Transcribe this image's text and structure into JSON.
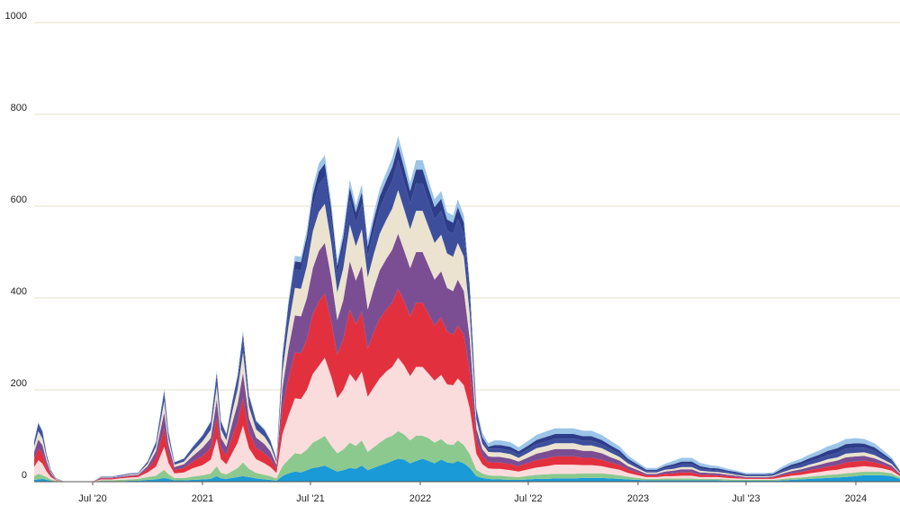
{
  "chart_data": {
    "type": "area",
    "stacked": true,
    "ylim": [
      0,
      1000
    ],
    "y_ticks": [
      0,
      200,
      400,
      600,
      800,
      1000
    ],
    "x_range": [
      "2020-03-25",
      "2024-03-15"
    ],
    "x_ticks": [
      {
        "date": "2020-07-01",
        "label": "Jul '20"
      },
      {
        "date": "2021-01-01",
        "label": "2021"
      },
      {
        "date": "2021-07-01",
        "label": "Jul '21"
      },
      {
        "date": "2022-01-01",
        "label": "2022"
      },
      {
        "date": "2022-07-01",
        "label": "Jul '22"
      },
      {
        "date": "2023-01-01",
        "label": "2023"
      },
      {
        "date": "2023-07-01",
        "label": "Jul '23"
      },
      {
        "date": "2024-01-01",
        "label": "2024"
      }
    ],
    "grid": true,
    "legend": "none",
    "series_colors": [
      "#1a9ad6",
      "#8cc98f",
      "#fbdcdc",
      "#e3303f",
      "#7b4e93",
      "#ebe3cf",
      "#3d4f9c",
      "#2e3d8a",
      "#9cc5e8"
    ],
    "x": [
      "2020-03-25",
      "2020-04-01",
      "2020-04-08",
      "2020-04-15",
      "2020-04-22",
      "2020-05-01",
      "2020-05-15",
      "2020-06-01",
      "2020-06-15",
      "2020-07-01",
      "2020-07-15",
      "2020-08-01",
      "2020-08-15",
      "2020-09-01",
      "2020-09-15",
      "2020-10-01",
      "2020-10-15",
      "2020-10-29",
      "2020-11-05",
      "2020-11-15",
      "2020-12-01",
      "2020-12-15",
      "2021-01-01",
      "2021-01-15",
      "2021-01-25",
      "2021-02-01",
      "2021-02-10",
      "2021-02-20",
      "2021-03-01",
      "2021-03-10",
      "2021-03-20",
      "2021-04-01",
      "2021-04-15",
      "2021-04-25",
      "2021-05-05",
      "2021-05-15",
      "2021-05-25",
      "2021-06-05",
      "2021-06-15",
      "2021-06-25",
      "2021-07-05",
      "2021-07-15",
      "2021-07-25",
      "2021-08-05",
      "2021-08-15",
      "2021-08-25",
      "2021-09-05",
      "2021-09-15",
      "2021-09-25",
      "2021-10-05",
      "2021-10-15",
      "2021-10-25",
      "2021-11-05",
      "2021-11-15",
      "2021-11-25",
      "2021-12-05",
      "2021-12-15",
      "2021-12-25",
      "2022-01-05",
      "2022-01-15",
      "2022-01-25",
      "2022-02-05",
      "2022-02-15",
      "2022-02-25",
      "2022-03-05",
      "2022-03-15",
      "2022-03-25",
      "2022-04-05",
      "2022-04-15",
      "2022-04-25",
      "2022-05-05",
      "2022-05-15",
      "2022-06-01",
      "2022-06-15",
      "2022-07-01",
      "2022-07-15",
      "2022-08-01",
      "2022-08-15",
      "2022-09-01",
      "2022-09-15",
      "2022-10-01",
      "2022-10-15",
      "2022-11-01",
      "2022-11-15",
      "2022-12-01",
      "2022-12-15",
      "2023-01-01",
      "2023-01-15",
      "2023-02-01",
      "2023-02-15",
      "2023-03-01",
      "2023-03-15",
      "2023-04-01",
      "2023-04-15",
      "2023-05-01",
      "2023-05-15",
      "2023-06-01",
      "2023-06-15",
      "2023-07-01",
      "2023-07-15",
      "2023-08-01",
      "2023-08-15",
      "2023-09-01",
      "2023-09-15",
      "2023-10-01",
      "2023-10-15",
      "2023-11-01",
      "2023-11-15",
      "2023-12-01",
      "2023-12-15",
      "2024-01-01",
      "2024-01-15",
      "2024-02-01",
      "2024-02-15",
      "2024-03-01",
      "2024-03-15"
    ],
    "series": [
      {
        "values": [
          4,
          5,
          6,
          4,
          2,
          1,
          0,
          0,
          0,
          0,
          1,
          1,
          1,
          2,
          2,
          4,
          5,
          8,
          6,
          3,
          3,
          4,
          5,
          6,
          12,
          7,
          6,
          8,
          10,
          12,
          10,
          7,
          5,
          4,
          2,
          12,
          18,
          22,
          20,
          25,
          30,
          32,
          35,
          28,
          22,
          25,
          30,
          28,
          35,
          25,
          30,
          35,
          40,
          45,
          50,
          48,
          40,
          45,
          50,
          45,
          40,
          48,
          42,
          40,
          45,
          40,
          30,
          12,
          8,
          6,
          5,
          5,
          4,
          4,
          5,
          6,
          6,
          7,
          7,
          7,
          8,
          8,
          8,
          7,
          6,
          5,
          4,
          3,
          3,
          3,
          3,
          3,
          3,
          3,
          3,
          3,
          2,
          2,
          2,
          2,
          2,
          2,
          3,
          4,
          5,
          6,
          7,
          8,
          9,
          10,
          12,
          14,
          14,
          14,
          12,
          6
        ]
      },
      {
        "values": [
          8,
          12,
          8,
          6,
          3,
          1,
          0,
          0,
          0,
          0,
          2,
          2,
          3,
          3,
          4,
          6,
          8,
          18,
          10,
          5,
          5,
          7,
          9,
          12,
          22,
          12,
          10,
          15,
          20,
          30,
          18,
          12,
          10,
          8,
          5,
          22,
          30,
          40,
          40,
          45,
          55,
          60,
          65,
          50,
          40,
          45,
          55,
          50,
          55,
          40,
          45,
          50,
          55,
          55,
          60,
          55,
          50,
          55,
          50,
          50,
          45,
          45,
          40,
          40,
          45,
          40,
          30,
          14,
          10,
          8,
          8,
          8,
          7,
          6,
          8,
          9,
          10,
          10,
          10,
          10,
          10,
          10,
          10,
          9,
          8,
          6,
          4,
          3,
          3,
          4,
          4,
          4,
          4,
          3,
          3,
          3,
          3,
          2,
          2,
          2,
          2,
          2,
          3,
          4,
          4,
          5,
          6,
          7,
          7,
          8,
          8,
          8,
          8,
          7,
          6,
          3
        ]
      },
      {
        "values": [
          20,
          30,
          25,
          12,
          5,
          1,
          0,
          0,
          0,
          0,
          2,
          2,
          3,
          4,
          4,
          10,
          20,
          50,
          25,
          10,
          12,
          18,
          22,
          30,
          60,
          30,
          22,
          40,
          55,
          80,
          45,
          30,
          25,
          20,
          12,
          70,
          95,
          120,
          120,
          130,
          150,
          160,
          170,
          150,
          120,
          130,
          150,
          140,
          150,
          120,
          130,
          140,
          145,
          150,
          160,
          150,
          140,
          150,
          150,
          140,
          135,
          140,
          130,
          130,
          135,
          130,
          100,
          35,
          20,
          15,
          15,
          15,
          14,
          12,
          14,
          16,
          18,
          20,
          20,
          20,
          18,
          18,
          16,
          14,
          12,
          8,
          6,
          4,
          4,
          5,
          5,
          6,
          6,
          4,
          4,
          4,
          3,
          3,
          2,
          2,
          2,
          2,
          4,
          5,
          6,
          7,
          8,
          9,
          10,
          12,
          12,
          12,
          10,
          8,
          6,
          3
        ]
      },
      {
        "values": [
          18,
          25,
          22,
          12,
          5,
          1,
          0,
          0,
          0,
          0,
          2,
          2,
          2,
          3,
          3,
          8,
          18,
          40,
          22,
          8,
          10,
          14,
          20,
          25,
          45,
          25,
          20,
          35,
          45,
          60,
          35,
          25,
          22,
          18,
          10,
          55,
          80,
          100,
          100,
          110,
          130,
          140,
          140,
          120,
          95,
          110,
          140,
          125,
          130,
          105,
          120,
          130,
          135,
          140,
          150,
          140,
          130,
          140,
          140,
          130,
          120,
          125,
          115,
          110,
          115,
          110,
          80,
          30,
          18,
          14,
          14,
          14,
          13,
          12,
          14,
          16,
          17,
          18,
          18,
          18,
          16,
          16,
          14,
          12,
          10,
          8,
          6,
          4,
          4,
          5,
          6,
          7,
          7,
          5,
          5,
          4,
          4,
          3,
          2,
          2,
          2,
          3,
          4,
          5,
          6,
          7,
          8,
          9,
          10,
          12,
          12,
          12,
          10,
          8,
          6,
          3
        ]
      },
      {
        "values": [
          15,
          20,
          18,
          10,
          4,
          1,
          0,
          0,
          0,
          0,
          2,
          2,
          2,
          2,
          2,
          6,
          15,
          35,
          18,
          6,
          8,
          12,
          18,
          22,
          40,
          22,
          18,
          30,
          40,
          55,
          30,
          22,
          20,
          16,
          8,
          45,
          65,
          80,
          80,
          90,
          100,
          110,
          110,
          95,
          75,
          85,
          105,
          95,
          100,
          85,
          95,
          105,
          110,
          115,
          120,
          110,
          105,
          110,
          110,
          105,
          100,
          100,
          95,
          95,
          100,
          95,
          70,
          25,
          15,
          12,
          12,
          12,
          12,
          10,
          12,
          14,
          15,
          16,
          16,
          16,
          15,
          15,
          14,
          12,
          10,
          7,
          5,
          3,
          3,
          5,
          6,
          7,
          7,
          5,
          4,
          4,
          3,
          3,
          2,
          2,
          2,
          2,
          4,
          5,
          6,
          7,
          8,
          9,
          10,
          11,
          11,
          10,
          9,
          7,
          5,
          2
        ]
      },
      {
        "values": [
          12,
          18,
          15,
          8,
          3,
          1,
          0,
          0,
          0,
          0,
          1,
          1,
          1,
          2,
          2,
          5,
          10,
          25,
          14,
          5,
          6,
          10,
          14,
          18,
          30,
          18,
          14,
          25,
          32,
          45,
          25,
          18,
          16,
          12,
          6,
          35,
          50,
          60,
          60,
          70,
          80,
          85,
          85,
          75,
          60,
          70,
          80,
          75,
          80,
          70,
          75,
          80,
          85,
          90,
          95,
          90,
          85,
          90,
          90,
          85,
          80,
          80,
          75,
          75,
          80,
          75,
          55,
          20,
          12,
          10,
          10,
          10,
          10,
          8,
          10,
          12,
          12,
          13,
          13,
          13,
          12,
          12,
          11,
          10,
          8,
          6,
          4,
          3,
          3,
          4,
          4,
          5,
          5,
          4,
          3,
          3,
          3,
          2,
          2,
          2,
          2,
          2,
          3,
          4,
          4,
          5,
          6,
          7,
          7,
          8,
          8,
          8,
          7,
          5,
          4,
          2
        ]
      },
      {
        "values": [
          8,
          12,
          10,
          5,
          2,
          1,
          0,
          0,
          0,
          0,
          1,
          1,
          1,
          1,
          1,
          3,
          7,
          16,
          9,
          3,
          4,
          6,
          8,
          12,
          20,
          12,
          9,
          15,
          20,
          28,
          16,
          12,
          10,
          8,
          4,
          22,
          32,
          40,
          40,
          45,
          55,
          60,
          60,
          50,
          40,
          45,
          55,
          50,
          55,
          45,
          50,
          55,
          58,
          60,
          65,
          60,
          55,
          60,
          60,
          55,
          52,
          52,
          50,
          50,
          52,
          50,
          38,
          14,
          9,
          7,
          8,
          8,
          8,
          7,
          8,
          9,
          10,
          10,
          10,
          10,
          10,
          10,
          9,
          8,
          7,
          5,
          4,
          3,
          3,
          4,
          5,
          6,
          6,
          5,
          4,
          4,
          3,
          3,
          2,
          2,
          2,
          2,
          4,
          5,
          6,
          7,
          8,
          9,
          10,
          11,
          11,
          10,
          9,
          7,
          5,
          2
        ]
      },
      {
        "values": [
          3,
          5,
          4,
          2,
          1,
          0,
          0,
          0,
          0,
          0,
          0,
          0,
          1,
          1,
          1,
          2,
          3,
          6,
          4,
          2,
          2,
          3,
          4,
          5,
          8,
          5,
          4,
          6,
          8,
          12,
          7,
          5,
          4,
          3,
          2,
          10,
          14,
          18,
          18,
          20,
          25,
          28,
          28,
          24,
          18,
          22,
          26,
          24,
          26,
          22,
          24,
          26,
          28,
          30,
          32,
          30,
          28,
          30,
          30,
          28,
          26,
          26,
          24,
          24,
          26,
          24,
          18,
          8,
          5,
          4,
          8,
          8,
          8,
          7,
          8,
          9,
          10,
          10,
          10,
          10,
          10,
          10,
          9,
          8,
          7,
          5,
          4,
          3,
          3,
          4,
          5,
          6,
          6,
          5,
          4,
          4,
          3,
          3,
          2,
          2,
          2,
          2,
          4,
          5,
          6,
          7,
          8,
          9,
          10,
          10,
          10,
          9,
          8,
          6,
          4,
          2
        ]
      },
      {
        "values": [
          2,
          3,
          3,
          2,
          1,
          0,
          0,
          0,
          0,
          0,
          0,
          0,
          0,
          0,
          0,
          1,
          2,
          4,
          3,
          1,
          1,
          2,
          2,
          3,
          5,
          3,
          2,
          4,
          5,
          8,
          5,
          3,
          3,
          2,
          1,
          6,
          9,
          12,
          12,
          14,
          16,
          18,
          18,
          15,
          12,
          14,
          17,
          15,
          17,
          14,
          15,
          17,
          18,
          20,
          21,
          20,
          18,
          20,
          20,
          18,
          17,
          17,
          16,
          16,
          17,
          16,
          12,
          5,
          10,
          8,
          10,
          10,
          10,
          9,
          10,
          11,
          12,
          12,
          12,
          12,
          12,
          12,
          11,
          10,
          9,
          7,
          5,
          4,
          4,
          5,
          7,
          8,
          8,
          7,
          6,
          5,
          4,
          3,
          3,
          3,
          3,
          3,
          5,
          6,
          7,
          8,
          9,
          10,
          11,
          11,
          11,
          10,
          9,
          7,
          5,
          2
        ]
      }
    ]
  }
}
